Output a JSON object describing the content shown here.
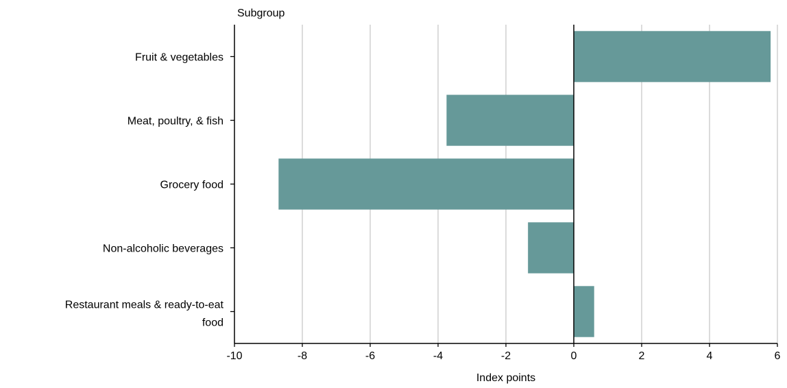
{
  "chart_data": {
    "type": "bar",
    "orientation": "horizontal",
    "ylabel": "Subgroup",
    "xlabel": "Index points",
    "categories": [
      [
        "Fruit & vegetables"
      ],
      [
        "Meat, poultry, & fish"
      ],
      [
        "Grocery food"
      ],
      [
        "Non-alcoholic beverages"
      ],
      [
        "Restaurant meals & ready-to-eat",
        "food"
      ]
    ],
    "values": [
      5.8,
      -3.75,
      -8.7,
      -1.35,
      0.6
    ],
    "xlim": [
      -10,
      6
    ],
    "xticks": [
      -10,
      -8,
      -6,
      -4,
      -2,
      0,
      2,
      4,
      6
    ],
    "grid": "vertical",
    "colors": {
      "bar": "#669999",
      "grid": "#c8c8c8",
      "axis": "#000000"
    }
  }
}
